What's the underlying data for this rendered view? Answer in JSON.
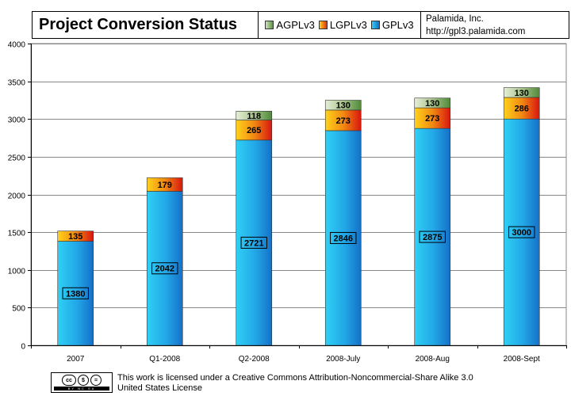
{
  "header": {
    "title": "Project Conversion Status",
    "company": "Palamida, Inc.",
    "url": "http://gpl3.palamida.com"
  },
  "legend": [
    {
      "label": "AGPLv3",
      "color": "#6a9e50"
    },
    {
      "label": "LGPLv3",
      "color": "#e03010"
    },
    {
      "label": "GPLv3",
      "color": "#1ea0dc"
    }
  ],
  "footer": {
    "badge": {
      "icons": [
        "cc",
        "$",
        "="
      ],
      "strip": "BY NC SA"
    },
    "license_line1": "This work is licensed under a Creative Commons Attribution-Noncommercial-Share Alike 3.0",
    "license_line2": "United States License"
  },
  "chart_data": {
    "type": "bar",
    "stacked": true,
    "title": "Project Conversion Status",
    "categories": [
      "2007",
      "Q1-2008",
      "Q2-2008",
      "2008-July",
      "2008-Aug",
      "2008-Sept"
    ],
    "series": [
      {
        "name": "GPLv3",
        "values": [
          1380,
          2042,
          2721,
          2846,
          2875,
          3000
        ],
        "color": "#1ea0dc"
      },
      {
        "name": "LGPLv3",
        "values": [
          135,
          179,
          265,
          273,
          273,
          286
        ],
        "color": "#e03010"
      },
      {
        "name": "AGPLv3",
        "values": [
          0,
          0,
          118,
          130,
          130,
          130
        ],
        "color": "#6a9e50"
      }
    ],
    "ylim": [
      0,
      4000
    ],
    "yticks": [
      0,
      500,
      1000,
      1500,
      2000,
      2500,
      3000,
      3500,
      4000
    ],
    "grid": true,
    "legend_position": "top"
  }
}
